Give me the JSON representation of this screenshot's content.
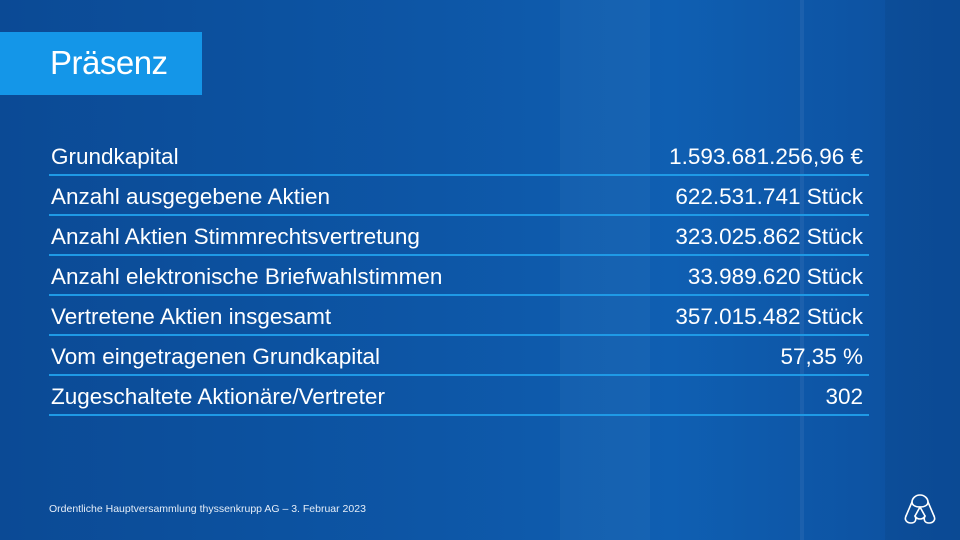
{
  "slide": {
    "title": "Präsenz",
    "rows": [
      {
        "label": "Grundkapital",
        "value": "1.593.681.256,96 €"
      },
      {
        "label": "Anzahl ausgegebene Aktien",
        "value": "622.531.741 Stück"
      },
      {
        "label": "Anzahl Aktien Stimmrechtsvertretung",
        "value": "323.025.862 Stück"
      },
      {
        "label": "Anzahl elektronische Briefwahlstimmen",
        "value": "33.989.620 Stück"
      },
      {
        "label": "Vertretene Aktien insgesamt",
        "value": "357.015.482 Stück"
      },
      {
        "label": "Vom eingetragenen Grundkapital",
        "value": "57,35 %"
      },
      {
        "label": "Zugeschaltete Aktionäre/Vertreter",
        "value": "302"
      }
    ],
    "footer": "Ordentliche Hauptversammlung thyssenkrupp AG – 3. Februar 2023"
  },
  "colors": {
    "background": "#0d56a6",
    "title_box": "#1496e8",
    "row_divider": "#1f9ae6",
    "text": "#ffffff"
  },
  "icons": {
    "logo": "thyssenkrupp-logo-icon"
  }
}
